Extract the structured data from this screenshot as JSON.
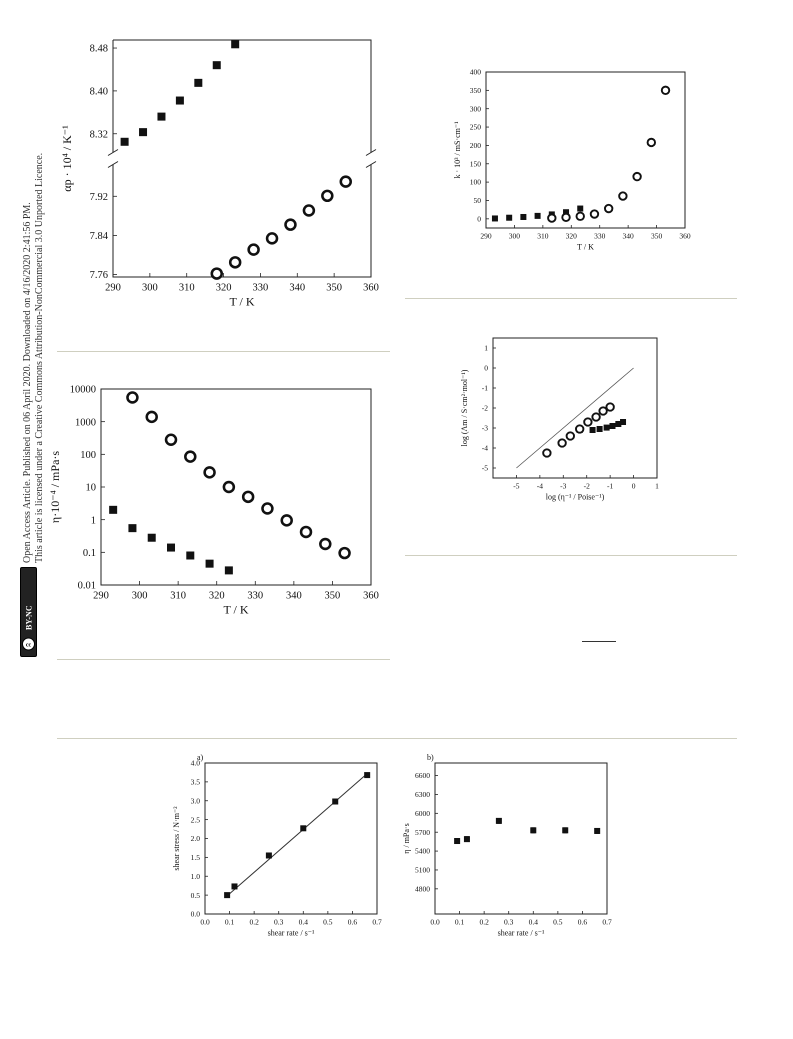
{
  "sidebar": {
    "line1": "Open Access Article. Published on 06 April 2020. Downloaded on 4/16/2020 2:41:56 PM.",
    "line2": "This article is licensed under a Creative Commons Attribution-NonCommercial 3.0 Unported Licence.",
    "badge": "BY-NC"
  },
  "chart_data": [
    {
      "id": "alpha",
      "type": "scatter",
      "xlabel": "T / K",
      "ylabel": "αp · 10⁴ / K⁻¹",
      "xlim": [
        290,
        360
      ],
      "xticks": [
        290,
        300,
        310,
        320,
        330,
        340,
        350,
        360
      ],
      "upper": {
        "ylim": [
          8.285,
          8.495
        ],
        "yticks": [
          8.32,
          8.4,
          8.48
        ]
      },
      "lower": {
        "ylim": [
          7.755,
          7.985
        ],
        "yticks": [
          7.76,
          7.84,
          7.92
        ]
      },
      "series": [
        {
          "marker": "square-filled",
          "segment": "upper",
          "x": [
            293.15,
            298.15,
            303.15,
            308.15,
            313.15,
            318.15,
            323.15
          ],
          "y": [
            8.305,
            8.323,
            8.352,
            8.382,
            8.415,
            8.448,
            8.487
          ]
        },
        {
          "marker": "circle-open",
          "segment": "lower",
          "x": [
            318.15,
            323.15,
            328.15,
            333.15,
            338.15,
            343.15,
            348.15,
            353.15
          ],
          "y": [
            7.762,
            7.785,
            7.811,
            7.834,
            7.862,
            7.891,
            7.921,
            7.95
          ]
        }
      ]
    },
    {
      "id": "kappa",
      "type": "scatter",
      "xlabel": "T / K",
      "ylabel": "k · 10³ / mS·cm⁻¹",
      "xlim": [
        290,
        360
      ],
      "xticks": [
        290,
        300,
        310,
        320,
        330,
        340,
        350,
        360
      ],
      "ylim": [
        -25,
        400
      ],
      "yticks": [
        0,
        50,
        100,
        150,
        200,
        250,
        300,
        350,
        400
      ],
      "series": [
        {
          "marker": "square-filled",
          "x": [
            293.15,
            298.15,
            303.15,
            308.15,
            313.15,
            318.15,
            323.15
          ],
          "y": [
            1,
            3,
            5,
            8,
            12,
            18,
            28
          ]
        },
        {
          "marker": "circle-open",
          "x": [
            313.15,
            318.15,
            323.15,
            328.15,
            333.15,
            338.15,
            343.15,
            348.15,
            353.15
          ],
          "y": [
            2,
            4,
            7,
            13,
            28,
            62,
            115,
            208,
            350
          ]
        }
      ]
    },
    {
      "id": "viscosity",
      "type": "scatter",
      "xlabel": "T / K",
      "ylabel": "η·10⁻⁴ / mPa·s",
      "xlim": [
        290,
        360
      ],
      "xticks": [
        290,
        300,
        310,
        320,
        330,
        340,
        350,
        360
      ],
      "yscale": "log",
      "ylim": [
        0.01,
        10000
      ],
      "yticks": [
        0.01,
        0.1,
        1,
        10,
        100,
        1000,
        10000
      ],
      "ytick_labels": [
        "0.01",
        "0.1",
        "1",
        "10",
        "100",
        "1000",
        "10000"
      ],
      "series": [
        {
          "marker": "square-filled",
          "x": [
            293.15,
            298.15,
            303.15,
            308.15,
            313.15,
            318.15,
            323.15
          ],
          "y": [
            2.0,
            0.55,
            0.28,
            0.14,
            0.08,
            0.045,
            0.028
          ]
        },
        {
          "marker": "circle-open",
          "x": [
            298.15,
            303.15,
            308.15,
            313.15,
            318.15,
            323.15,
            328.15,
            333.15,
            338.15,
            343.15,
            348.15,
            353.15
          ],
          "y": [
            5500,
            1400,
            280,
            85,
            28,
            10,
            5,
            2.2,
            0.95,
            0.42,
            0.18,
            0.095
          ]
        }
      ]
    },
    {
      "id": "walden",
      "type": "scatter",
      "xlabel": "log (η⁻¹ / Poise⁻¹)",
      "ylabel": "log (Λm / S·cm²·mol⁻¹)",
      "xlim": [
        -6,
        1
      ],
      "ylim": [
        -5.5,
        1.5
      ],
      "xticks": [
        -5,
        -4,
        -3,
        -2,
        -1,
        0,
        1
      ],
      "yticks": [
        -5,
        -4,
        -3,
        -2,
        -1,
        0,
        1
      ],
      "reference_line": {
        "x": [
          -5,
          0
        ],
        "y": [
          -5,
          0
        ]
      },
      "series": [
        {
          "marker": "square-filled",
          "x": [
            -2.3,
            -1.75,
            -1.45,
            -1.15,
            -0.9,
            -0.65,
            -0.45
          ],
          "y": [
            -3.1,
            -3.1,
            -3.05,
            -2.98,
            -2.9,
            -2.8,
            -2.7
          ]
        },
        {
          "marker": "circle-open",
          "x": [
            -3.7,
            -3.05,
            -2.7,
            -2.3,
            -1.95,
            -1.6,
            -1.3,
            -1.0
          ],
          "y": [
            -4.25,
            -3.75,
            -3.4,
            -3.05,
            -2.7,
            -2.45,
            -2.15,
            -1.95
          ]
        }
      ]
    },
    {
      "id": "shear_stress",
      "type": "scatter",
      "panel_label": "a)",
      "xlabel": "shear rate / s⁻¹",
      "ylabel": "shear stress / N·m⁻²",
      "xlim": [
        0,
        0.7
      ],
      "ylim": [
        0,
        4.0
      ],
      "xticks": [
        0.0,
        0.1,
        0.2,
        0.3,
        0.4,
        0.5,
        0.6,
        0.7
      ],
      "xtick_labels": [
        "0.0",
        "0.1",
        "0.2",
        "0.3",
        "0.4",
        "0.5",
        "0.6",
        "0.7"
      ],
      "yticks": [
        0.0,
        0.5,
        1.0,
        1.5,
        2.0,
        2.5,
        3.0,
        3.5,
        4.0
      ],
      "ytick_labels": [
        "0.0",
        "0.5",
        "1.0",
        "1.5",
        "2.0",
        "2.5",
        "3.0",
        "3.5",
        "4.0"
      ],
      "fit_line": {
        "x": [
          0.09,
          0.66
        ],
        "y": [
          0.48,
          3.72
        ]
      },
      "series": [
        {
          "marker": "square-filled",
          "x": [
            0.09,
            0.12,
            0.26,
            0.4,
            0.53,
            0.66
          ],
          "y": [
            0.5,
            0.73,
            1.55,
            2.27,
            2.98,
            3.68
          ]
        }
      ]
    },
    {
      "id": "eta_shear",
      "type": "scatter",
      "panel_label": "b)",
      "xlabel": "shear rate / s⁻¹",
      "ylabel": "η / mPa·s",
      "xlim": [
        0,
        0.7
      ],
      "ylim": [
        4400,
        6800
      ],
      "xticks": [
        0.0,
        0.1,
        0.2,
        0.3,
        0.4,
        0.5,
        0.6,
        0.7
      ],
      "xtick_labels": [
        "0.0",
        "0.1",
        "0.2",
        "0.3",
        "0.4",
        "0.5",
        "0.6",
        "0.7"
      ],
      "yticks": [
        4800,
        5100,
        5400,
        5700,
        6000,
        6300,
        6600
      ],
      "series": [
        {
          "marker": "square-filled",
          "error": 40,
          "x": [
            0.09,
            0.13,
            0.26,
            0.4,
            0.53,
            0.66
          ],
          "y": [
            5560,
            5590,
            5880,
            5730,
            5730,
            5720
          ]
        }
      ]
    }
  ]
}
